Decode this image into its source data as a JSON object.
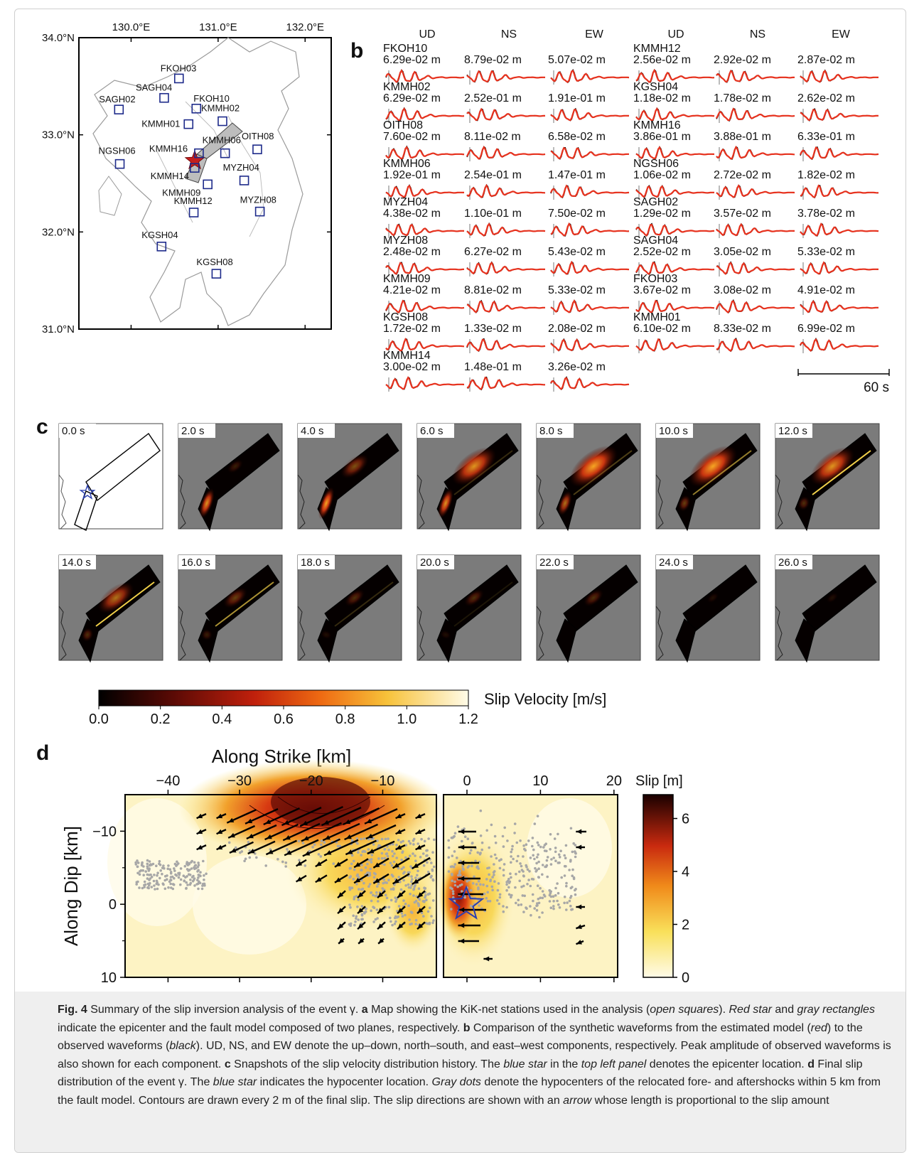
{
  "panel_a": {
    "letter": "a",
    "lon_ticks": [
      "130.0°E",
      "131.0°E",
      "132.0°E"
    ],
    "lat_ticks": [
      "34.0°N",
      "33.0°N",
      "32.0°N",
      "31.0°N"
    ],
    "stations": [
      {
        "name": "FKOH03",
        "lon": 130.55,
        "lat": 33.58
      },
      {
        "name": "SAGH04",
        "lon": 130.38,
        "lat": 33.38
      },
      {
        "name": "FKOH10",
        "lon": 130.75,
        "lat": 33.27
      },
      {
        "name": "SAGH02",
        "lon": 129.86,
        "lat": 33.26
      },
      {
        "name": "KMMH01",
        "lon": 130.66,
        "lat": 33.11
      },
      {
        "name": "KMMH02",
        "lon": 131.05,
        "lat": 33.14
      },
      {
        "name": "OITH08",
        "lon": 131.45,
        "lat": 32.85
      },
      {
        "name": "KMMH16",
        "lon": 130.78,
        "lat": 32.81
      },
      {
        "name": "KMMH06",
        "lon": 131.08,
        "lat": 32.81
      },
      {
        "name": "NGSH06",
        "lon": 129.87,
        "lat": 32.7
      },
      {
        "name": "KMMH14",
        "lon": 130.73,
        "lat": 32.66
      },
      {
        "name": "MYZH04",
        "lon": 131.3,
        "lat": 32.53
      },
      {
        "name": "KMMH09",
        "lon": 130.88,
        "lat": 32.49
      },
      {
        "name": "KMMH12",
        "lon": 130.72,
        "lat": 32.2
      },
      {
        "name": "MYZH08",
        "lon": 131.48,
        "lat": 32.21
      },
      {
        "name": "KGSH04",
        "lon": 130.35,
        "lat": 31.85
      },
      {
        "name": "KGSH08",
        "lon": 130.98,
        "lat": 31.57
      }
    ]
  },
  "panel_b": {
    "letter": "b",
    "components": [
      "UD",
      "NS",
      "EW"
    ],
    "left": [
      {
        "name": "FKOH10",
        "amps": [
          "6.29e-02 m",
          "8.79e-02 m",
          "5.07e-02 m"
        ]
      },
      {
        "name": "KMMH02",
        "amps": [
          "6.29e-02 m",
          "2.52e-01 m",
          "1.91e-01 m"
        ]
      },
      {
        "name": "OITH08",
        "amps": [
          "7.60e-02 m",
          "8.11e-02 m",
          "6.58e-02 m"
        ]
      },
      {
        "name": "KMMH06",
        "amps": [
          "1.92e-01 m",
          "2.54e-01 m",
          "1.47e-01 m"
        ]
      },
      {
        "name": "MYZH04",
        "amps": [
          "4.38e-02 m",
          "1.10e-01 m",
          "7.50e-02 m"
        ]
      },
      {
        "name": "MYZH08",
        "amps": [
          "2.48e-02 m",
          "6.27e-02 m",
          "5.43e-02 m"
        ]
      },
      {
        "name": "KMMH09",
        "amps": [
          "4.21e-02 m",
          "8.81e-02 m",
          "5.33e-02 m"
        ]
      },
      {
        "name": "KGSH08",
        "amps": [
          "1.72e-02 m",
          "1.33e-02 m",
          "2.08e-02 m"
        ]
      },
      {
        "name": "KMMH14",
        "amps": [
          "3.00e-02 m",
          "1.48e-01 m",
          "3.26e-02 m"
        ]
      }
    ],
    "right": [
      {
        "name": "KMMH12",
        "amps": [
          "2.56e-02 m",
          "2.92e-02 m",
          "2.87e-02 m"
        ]
      },
      {
        "name": "KGSH04",
        "amps": [
          "1.18e-02 m",
          "1.78e-02 m",
          "2.62e-02 m"
        ]
      },
      {
        "name": "KMMH16",
        "amps": [
          "3.86e-01 m",
          "3.88e-01 m",
          "6.33e-01 m"
        ]
      },
      {
        "name": "NGSH06",
        "amps": [
          "1.06e-02 m",
          "2.72e-02 m",
          "1.82e-02 m"
        ]
      },
      {
        "name": "SAGH02",
        "amps": [
          "1.29e-02 m",
          "3.57e-02 m",
          "3.78e-02 m"
        ]
      },
      {
        "name": "SAGH04",
        "amps": [
          "2.52e-02 m",
          "3.05e-02 m",
          "5.33e-02 m"
        ]
      },
      {
        "name": "FKOH03",
        "amps": [
          "3.67e-02 m",
          "3.08e-02 m",
          "4.91e-02 m"
        ]
      },
      {
        "name": "KMMH01",
        "amps": [
          "6.10e-02 m",
          "8.33e-02 m",
          "6.99e-02 m"
        ]
      }
    ],
    "scale_label": "60 s",
    "synthetic_color": "#e8321e",
    "observed_color": "#000000"
  },
  "panel_c": {
    "letter": "c",
    "times": [
      "0.0 s",
      "2.0 s",
      "4.0 s",
      "6.0 s",
      "8.0 s",
      "10.0 s",
      "12.0 s",
      "14.0 s",
      "16.0 s",
      "18.0 s",
      "20.0 s",
      "22.0 s",
      "24.0 s",
      "26.0 s"
    ],
    "colorbar_label": "Slip Velocity [m/s]",
    "colorbar_ticks": [
      "0.0",
      "0.2",
      "0.4",
      "0.6",
      "0.8",
      "1.0",
      "1.2"
    ]
  },
  "panel_d": {
    "letter": "d",
    "xlabel": "Along Strike [km]",
    "ylabel": "Along Dip [km]",
    "x_ticks_left": [
      "−40",
      "−30",
      "−20",
      "−10"
    ],
    "x_ticks_right": [
      "0",
      "10",
      "20"
    ],
    "y_ticks": [
      "−10",
      "0",
      "10"
    ],
    "colorbar_label": "Slip [m]",
    "colorbar_ticks": [
      "6",
      "4",
      "2",
      "0"
    ]
  },
  "caption": {
    "title": "Fig. 4",
    "text_1": "  Summary of the slip inversion analysis of the event γ. ",
    "a": "a",
    "text_2": " Map showing the KiK-net stations used in the analysis (",
    "i1": "open squares",
    "text_3": "). ",
    "i2": "Red star",
    "text_4": " and ",
    "i3": "gray rectangles",
    "text_5": " indicate the epicenter and the fault model composed of two planes, respectively. ",
    "b": "b",
    "text_6": " Comparison of the synthetic waveforms from the estimated model (",
    "i4": "red",
    "text_7": ") to the observed waveforms (",
    "i5": "black",
    "text_8": "). UD, NS, and EW denote the up–down, north–south, and east–west components, respectively. Peak amplitude of observed waveforms is also shown for each component. ",
    "c": "c",
    "text_9": " Snapshots of the slip velocity distribution history. The ",
    "i6": "blue star",
    "text_10": " in the ",
    "i7": "top left panel",
    "text_11": " denotes the epicenter location. ",
    "d": "d",
    "text_12": " Final slip distribution of the event γ. The ",
    "i8": "blue star",
    "text_13": " indicates the hypocenter location. ",
    "i9": "Gray dots",
    "text_14": " denote the hypocenters of the relocated fore- and aftershocks within 5 km from the fault model. Contours are drawn every 2 m of the final slip. The slip directions are shown with an ",
    "i10": "arrow",
    "text_15": " whose length is proportional to the slip amount"
  }
}
